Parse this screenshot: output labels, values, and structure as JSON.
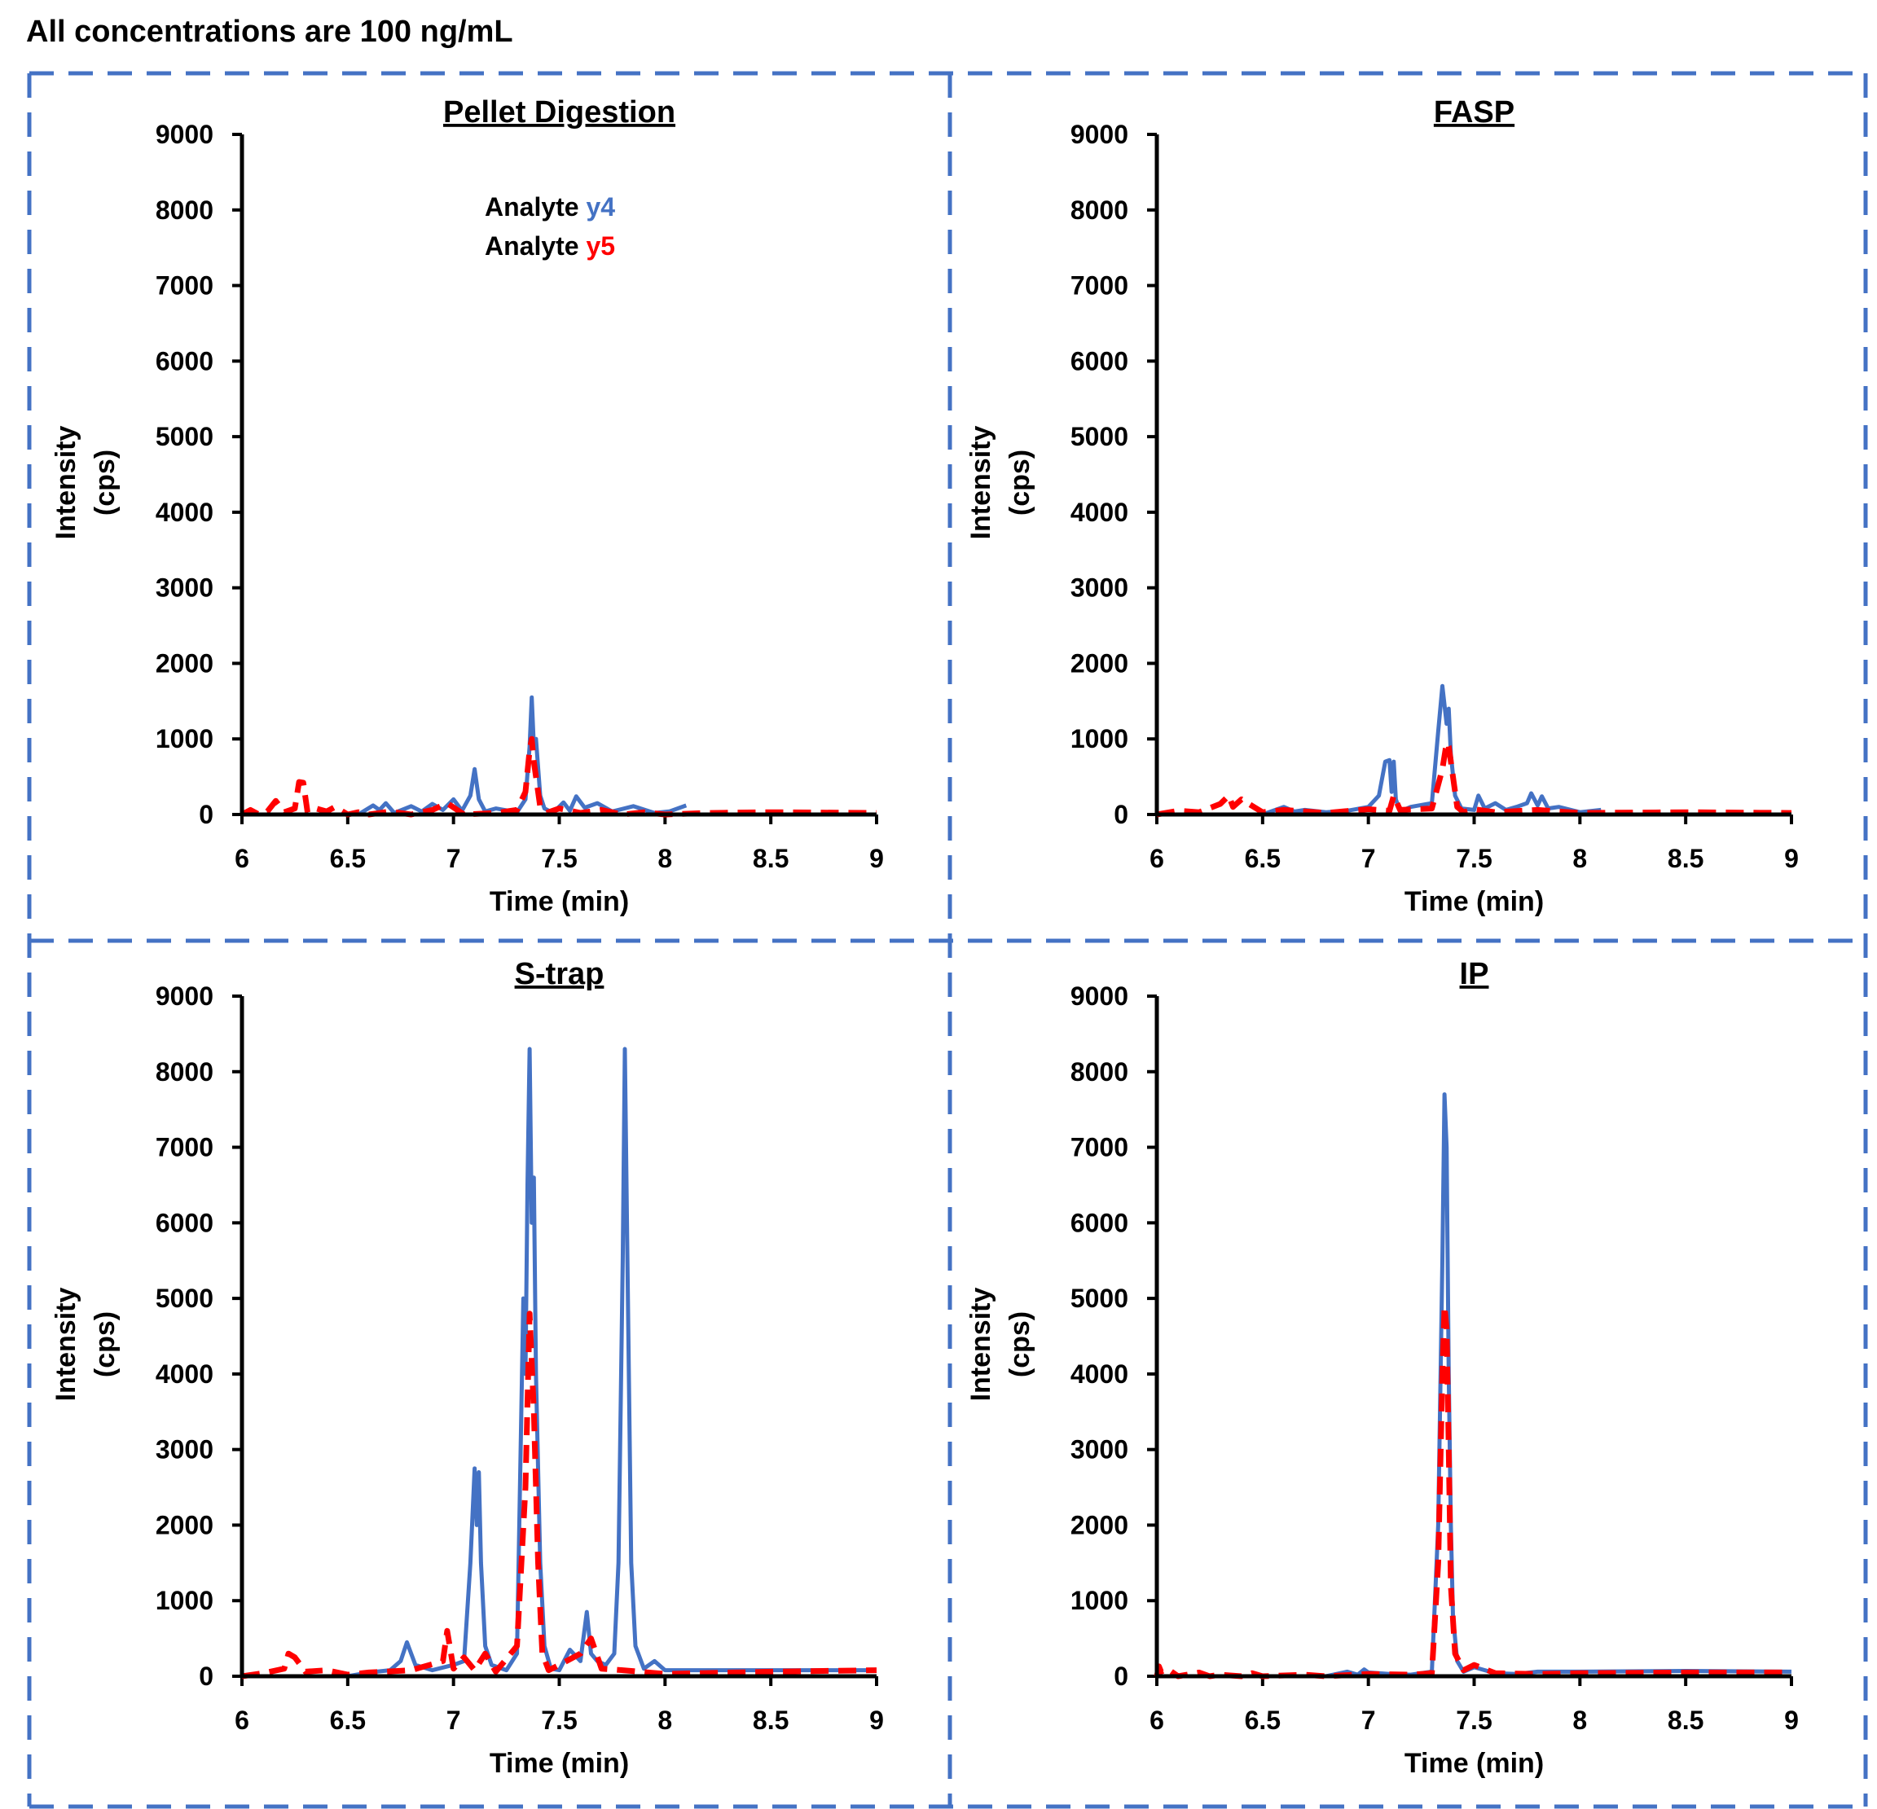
{
  "header": {
    "title": "All concentrations are 100 ng/mL"
  },
  "legend": {
    "prefix": "Analyte",
    "entries": [
      {
        "label": "y4",
        "color": "#4472C4"
      },
      {
        "label": "y5",
        "color": "#FF0000"
      }
    ]
  },
  "colors": {
    "y4": "#4472C4",
    "y5": "#FF0000",
    "frame": "#4472C4",
    "axis": "#000000"
  },
  "chart_data": [
    {
      "type": "line",
      "title": "Pellet Digestion",
      "xlabel": "Time (min)",
      "ylabel": [
        "Intensity",
        "(cps)"
      ],
      "xlim": [
        6,
        9
      ],
      "ylim": [
        0,
        9000
      ],
      "xticks": [
        "6",
        "6.5",
        "7",
        "7.5",
        "8",
        "8.5",
        "9"
      ],
      "yticks": [
        "0",
        "1000",
        "2000",
        "3000",
        "4000",
        "5000",
        "6000",
        "7000",
        "8000",
        "9000"
      ],
      "show_legend": true,
      "series": [
        {
          "name": "y4",
          "style": "solid",
          "x": [
            6.55,
            6.62,
            6.65,
            6.68,
            6.72,
            6.8,
            6.85,
            6.9,
            6.95,
            7.0,
            7.04,
            7.08,
            7.1,
            7.12,
            7.15,
            7.2,
            7.3,
            7.34,
            7.36,
            7.37,
            7.38,
            7.39,
            7.41,
            7.43,
            7.47,
            7.52,
            7.55,
            7.58,
            7.62,
            7.68,
            7.75,
            7.85,
            7.95,
            8.02,
            8.1
          ],
          "y": [
            0,
            120,
            60,
            150,
            20,
            110,
            40,
            140,
            60,
            200,
            50,
            250,
            600,
            200,
            40,
            80,
            30,
            200,
            900,
            1550,
            900,
            1000,
            250,
            80,
            20,
            160,
            50,
            240,
            90,
            150,
            40,
            110,
            20,
            40,
            120
          ]
        },
        {
          "name": "y5",
          "style": "dashed",
          "x": [
            6.0,
            6.04,
            6.08,
            6.12,
            6.16,
            6.2,
            6.25,
            6.27,
            6.29,
            6.31,
            6.35,
            6.4,
            6.44,
            6.5,
            6.55,
            6.6,
            6.7,
            6.8,
            6.9,
            6.97,
            7.05,
            7.2,
            7.3,
            7.34,
            7.36,
            7.37,
            7.38,
            7.39,
            7.41,
            7.44,
            7.5,
            7.6,
            7.7,
            7.8,
            7.9,
            8.0,
            8.2,
            8.5,
            9.0
          ],
          "y": [
            0,
            60,
            0,
            40,
            180,
            30,
            80,
            430,
            420,
            30,
            80,
            40,
            100,
            0,
            30,
            0,
            40,
            0,
            60,
            150,
            0,
            20,
            60,
            300,
            850,
            1000,
            700,
            500,
            100,
            20,
            80,
            20,
            60,
            0,
            30,
            0,
            20,
            30,
            20
          ]
        }
      ]
    },
    {
      "type": "line",
      "title": "FASP",
      "xlabel": "Time (min)",
      "ylabel": [
        "Intensity",
        "(cps)"
      ],
      "xlim": [
        6,
        9
      ],
      "ylim": [
        0,
        9000
      ],
      "xticks": [
        "6",
        "6.5",
        "7",
        "7.5",
        "8",
        "8.5",
        "9"
      ],
      "yticks": [
        "0",
        "1000",
        "2000",
        "3000",
        "4000",
        "5000",
        "6000",
        "7000",
        "8000",
        "9000"
      ],
      "show_legend": false,
      "series": [
        {
          "name": "y4",
          "style": "solid",
          "x": [
            6.5,
            6.6,
            6.65,
            6.7,
            6.8,
            6.9,
            7.0,
            7.05,
            7.08,
            7.1,
            7.11,
            7.12,
            7.13,
            7.15,
            7.2,
            7.3,
            7.33,
            7.35,
            7.37,
            7.38,
            7.39,
            7.41,
            7.44,
            7.5,
            7.52,
            7.55,
            7.6,
            7.65,
            7.7,
            7.75,
            7.77,
            7.8,
            7.82,
            7.85,
            7.9,
            8.0,
            8.1
          ],
          "y": [
            0,
            100,
            40,
            60,
            30,
            50,
            100,
            250,
            700,
            720,
            300,
            700,
            200,
            40,
            100,
            150,
            1100,
            1700,
            1200,
            1400,
            800,
            250,
            80,
            60,
            250,
            80,
            150,
            60,
            100,
            150,
            280,
            120,
            240,
            80,
            100,
            30,
            60
          ]
        },
        {
          "name": "y5",
          "style": "dashed",
          "x": [
            6.0,
            6.1,
            6.2,
            6.3,
            6.34,
            6.36,
            6.4,
            6.5,
            6.6,
            6.8,
            7.0,
            7.1,
            7.12,
            7.15,
            7.3,
            7.35,
            7.37,
            7.38,
            7.4,
            7.42,
            7.45,
            7.5,
            7.6,
            7.8,
            8.0,
            8.5,
            9.0
          ],
          "y": [
            0,
            50,
            30,
            140,
            250,
            100,
            200,
            30,
            60,
            20,
            70,
            50,
            250,
            60,
            80,
            600,
            950,
            900,
            500,
            100,
            30,
            70,
            30,
            60,
            20,
            30,
            20
          ]
        }
      ]
    },
    {
      "type": "line",
      "title": "S-trap",
      "xlabel": "Time (min)",
      "ylabel": [
        "Intensity",
        "(cps)"
      ],
      "xlim": [
        6,
        9
      ],
      "ylim": [
        0,
        9000
      ],
      "xticks": [
        "6",
        "6.5",
        "7",
        "7.5",
        "8",
        "8.5",
        "9"
      ],
      "yticks": [
        "0",
        "1000",
        "2000",
        "3000",
        "4000",
        "5000",
        "6000",
        "7000",
        "8000",
        "9000"
      ],
      "show_legend": false,
      "series": [
        {
          "name": "y4",
          "style": "solid",
          "x": [
            6.5,
            6.6,
            6.7,
            6.75,
            6.78,
            6.82,
            6.9,
            7.0,
            7.05,
            7.08,
            7.1,
            7.11,
            7.12,
            7.13,
            7.15,
            7.18,
            7.25,
            7.3,
            7.33,
            7.34,
            7.35,
            7.36,
            7.37,
            7.38,
            7.39,
            7.41,
            7.43,
            7.46,
            7.5,
            7.55,
            7.6,
            7.63,
            7.65,
            7.68,
            7.72,
            7.76,
            7.78,
            7.8,
            7.81,
            7.82,
            7.84,
            7.86,
            7.9,
            7.95,
            8.0,
            8.2,
            8.5,
            9.0
          ],
          "y": [
            0,
            50,
            80,
            200,
            450,
            150,
            80,
            150,
            200,
            1500,
            2750,
            2000,
            2700,
            1500,
            400,
            150,
            80,
            300,
            5000,
            4000,
            6500,
            8300,
            6000,
            6600,
            4000,
            1500,
            400,
            100,
            80,
            350,
            200,
            850,
            300,
            200,
            150,
            300,
            1500,
            5500,
            8300,
            6000,
            1500,
            400,
            100,
            200,
            80,
            80,
            80,
            80
          ]
        },
        {
          "name": "y5",
          "style": "dashed",
          "x": [
            6.0,
            6.1,
            6.2,
            6.22,
            6.25,
            6.3,
            6.4,
            6.5,
            6.6,
            6.8,
            6.95,
            6.97,
            7.0,
            7.05,
            7.1,
            7.15,
            7.2,
            7.3,
            7.34,
            7.36,
            7.38,
            7.4,
            7.42,
            7.45,
            7.5,
            7.6,
            7.65,
            7.7,
            7.8,
            8.0,
            8.5,
            9.0
          ],
          "y": [
            0,
            40,
            100,
            300,
            250,
            60,
            80,
            20,
            50,
            80,
            200,
            600,
            100,
            250,
            80,
            300,
            60,
            400,
            2500,
            4800,
            3500,
            1500,
            300,
            80,
            150,
            300,
            500,
            100,
            80,
            30,
            60,
            80
          ]
        }
      ]
    },
    {
      "type": "line",
      "title": "IP",
      "xlabel": "Time (min)",
      "ylabel": [
        "Intensity",
        "(cps)"
      ],
      "xlim": [
        6,
        9
      ],
      "ylim": [
        0,
        9000
      ],
      "xticks": [
        "6",
        "6.5",
        "7",
        "7.5",
        "8",
        "8.5",
        "9"
      ],
      "yticks": [
        "0",
        "1000",
        "2000",
        "3000",
        "4000",
        "5000",
        "6000",
        "7000",
        "8000",
        "9000"
      ],
      "show_legend": false,
      "series": [
        {
          "name": "y4",
          "style": "solid",
          "x": [
            6.0,
            6.5,
            6.8,
            6.9,
            6.95,
            6.98,
            7.0,
            7.1,
            7.2,
            7.3,
            7.33,
            7.35,
            7.36,
            7.37,
            7.38,
            7.39,
            7.4,
            7.42,
            7.45,
            7.5,
            7.6,
            7.7,
            7.8,
            8.0,
            8.5,
            9.0
          ],
          "y": [
            0,
            0,
            0,
            60,
            20,
            90,
            50,
            30,
            20,
            60,
            2000,
            5500,
            7700,
            7000,
            4000,
            2000,
            800,
            200,
            60,
            120,
            40,
            30,
            60,
            60,
            70,
            60
          ]
        },
        {
          "name": "y5",
          "style": "dashed",
          "x": [
            6.0,
            6.01,
            6.02,
            6.05,
            6.1,
            6.2,
            6.25,
            6.3,
            6.4,
            6.45,
            6.5,
            6.7,
            6.8,
            7.0,
            7.2,
            7.3,
            7.33,
            7.35,
            7.36,
            7.37,
            7.38,
            7.39,
            7.41,
            7.45,
            7.5,
            7.6,
            7.8,
            8.0,
            8.5,
            9.0
          ],
          "y": [
            0,
            130,
            60,
            100,
            0,
            50,
            0,
            20,
            0,
            40,
            0,
            20,
            0,
            30,
            20,
            40,
            1500,
            4000,
            4900,
            4600,
            3000,
            1200,
            300,
            80,
            150,
            40,
            30,
            40,
            50,
            50
          ]
        }
      ]
    }
  ]
}
